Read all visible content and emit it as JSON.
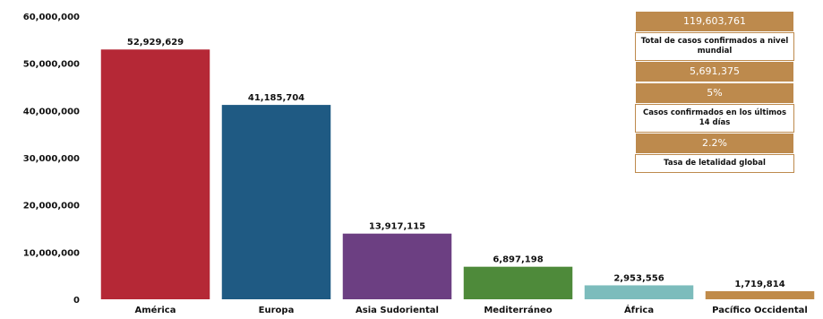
{
  "chart_data": {
    "type": "bar",
    "categories": [
      "América",
      "Europa",
      "Asia Sudoriental",
      "Mediterráneo",
      "África",
      "Pacífico Occidental"
    ],
    "values": [
      52929629,
      41185704,
      13917115,
      6897198,
      2953556,
      1719814
    ],
    "value_labels": [
      "52,929,629",
      "41,185,704",
      "13,917,115",
      "6,897,198",
      "2,953,556",
      "1,719,814"
    ],
    "colors": [
      "#b52836",
      "#1f5a83",
      "#6c3f82",
      "#4e8a3a",
      "#7cbcbc",
      "#c08b4a"
    ],
    "ylim": [
      0,
      60000000
    ],
    "yticks": [
      "0",
      "10,000,000",
      "20,000,000",
      "30,000,000",
      "40,000,000",
      "50,000,000",
      "60,000,000"
    ],
    "title": "",
    "xlabel": "",
    "ylabel": "",
    "grid": false
  },
  "stats": {
    "total_value": "119,603,761",
    "total_label": "Total de casos confirmados a nivel mundial",
    "recent_value": "5,691,375",
    "recent_pct": "5%",
    "recent_label": "Casos confirmados en los últimos 14 días",
    "lethality_value": "2.2%",
    "lethality_label": "Tasa de letalidad global"
  }
}
